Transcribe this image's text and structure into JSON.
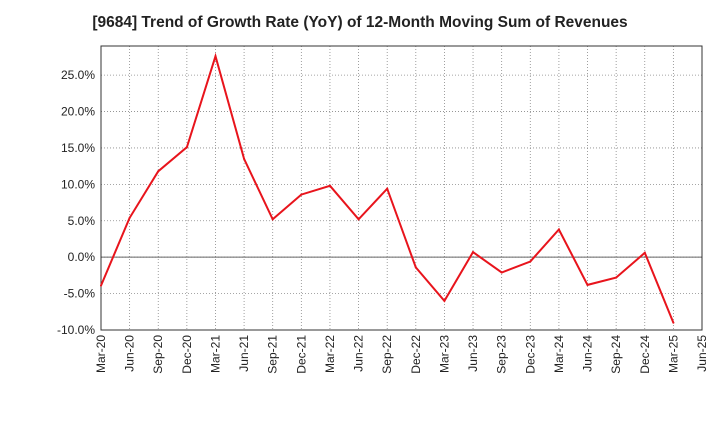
{
  "chart_data": {
    "type": "line",
    "title": "[9684]  Trend of Growth Rate (YoY) of 12-Month Moving Sum of Revenues",
    "xlabel": "",
    "ylabel": "",
    "x_ticks": [
      "Mar-20",
      "Jun-20",
      "Sep-20",
      "Dec-20",
      "Mar-21",
      "Jun-21",
      "Sep-21",
      "Dec-21",
      "Mar-22",
      "Jun-22",
      "Sep-22",
      "Dec-22",
      "Mar-23",
      "Jun-23",
      "Sep-23",
      "Dec-23",
      "Mar-24",
      "Jun-24",
      "Sep-24",
      "Dec-24",
      "Mar-25",
      "Jun-25"
    ],
    "y_ticks": [
      "25.0%",
      "20.0%",
      "15.0%",
      "10.0%",
      "5.0%",
      "0.0%",
      "-5.0%",
      "-10.0%"
    ],
    "y_tick_values": [
      25,
      20,
      15,
      10,
      5,
      0,
      -5,
      -10
    ],
    "ylim": [
      -10,
      29
    ],
    "grid": true,
    "series": [
      {
        "color": "#e8141c",
        "x": [
          "Mar-20",
          "Jun-20",
          "Sep-20",
          "Dec-20",
          "Mar-21",
          "Jun-21",
          "Sep-21",
          "Dec-21",
          "Mar-22",
          "Jun-22",
          "Sep-22",
          "Dec-22",
          "Mar-23",
          "Jun-23",
          "Sep-23",
          "Dec-23",
          "Mar-24",
          "Jun-24",
          "Sep-24",
          "Dec-24",
          "Mar-25"
        ],
        "values": [
          -3.9,
          5.4,
          11.8,
          15.1,
          27.6,
          13.5,
          5.2,
          8.6,
          9.8,
          5.2,
          9.4,
          -1.4,
          -6.0,
          0.7,
          -2.1,
          -0.6,
          3.8,
          -3.8,
          -2.8,
          0.6,
          -9.0
        ]
      }
    ]
  }
}
